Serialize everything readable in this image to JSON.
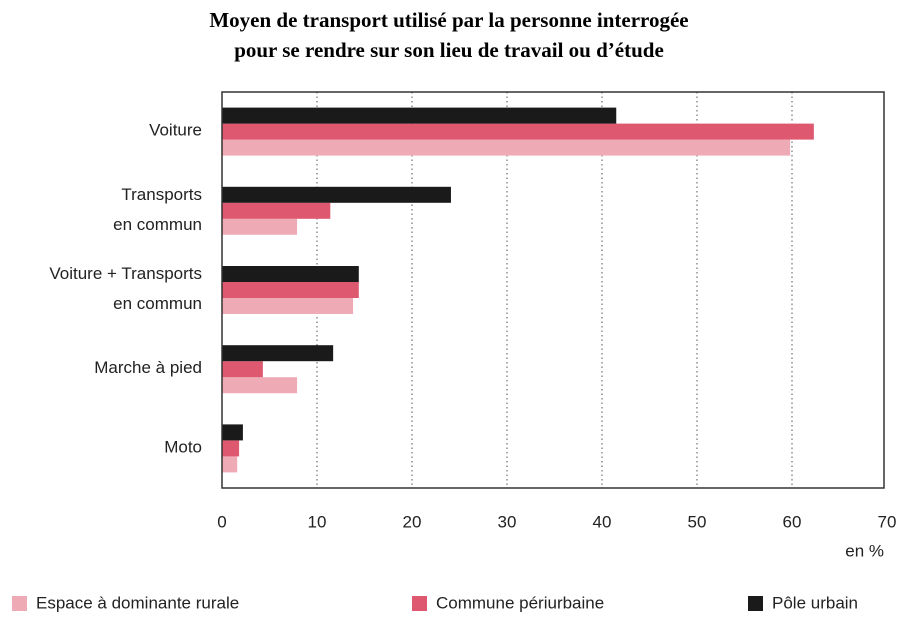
{
  "chart_data": {
    "type": "barh",
    "title": [
      "Moyen de transport utilisé par la personne interrogée",
      "pour se rendre sur son lieu de travail ou d’étude"
    ],
    "categories": [
      [
        "Voiture"
      ],
      [
        "Transports",
        "en commun"
      ],
      [
        "Voiture + Transports",
        "en commun"
      ],
      [
        "Marche à pied"
      ],
      [
        "Moto"
      ]
    ],
    "series": [
      {
        "name": "Espace à dominante rurale",
        "color": "#eeaab5",
        "values": [
          59.8,
          7.9,
          13.8,
          7.9,
          1.6
        ]
      },
      {
        "name": "Commune périurbaine",
        "color": "#de5870",
        "values": [
          62.3,
          11.4,
          14.4,
          4.3,
          1.8
        ]
      },
      {
        "name": "Pôle urbain",
        "color": "#1a1a1a",
        "values": [
          41.5,
          24.1,
          14.4,
          11.7,
          2.2
        ]
      }
    ],
    "x_unit": "en %",
    "xlim": [
      0,
      70
    ],
    "xticks": [
      0,
      10,
      20,
      30,
      40,
      50,
      60,
      70
    ],
    "grid": true
  }
}
